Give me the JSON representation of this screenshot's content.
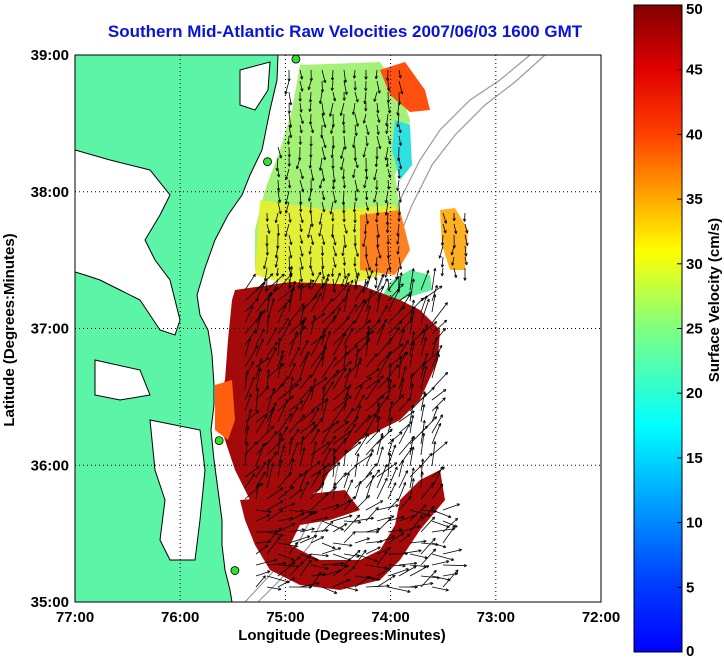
{
  "title": "Southern Mid-Atlantic Raw Velocities 2007/06/03 1600 GMT",
  "x_axis": {
    "label": "Longitude (Degrees:Minutes)",
    "ticks": [
      "77:00",
      "76:00",
      "75:00",
      "74:00",
      "73:00",
      "72:00"
    ],
    "range": [
      -77,
      -72
    ]
  },
  "y_axis": {
    "label": "Latitude (Degrees:Minutes)",
    "ticks": [
      "35:00",
      "36:00",
      "37:00",
      "38:00",
      "39:00"
    ],
    "range": [
      35,
      39
    ]
  },
  "colorbar": {
    "label": "Surface Velocity (cm/s)",
    "ticks": [
      "0",
      "5",
      "10",
      "15",
      "20",
      "25",
      "30",
      "35",
      "40",
      "45",
      "50"
    ],
    "range": [
      0,
      50
    ],
    "colormap": "jet"
  },
  "colors": {
    "land": "#5cf5a8",
    "title": "#0a14d8",
    "station_marker": "#30e030"
  },
  "stations": [
    {
      "lon": -74.9,
      "lat": 38.97
    },
    {
      "lon": -75.17,
      "lat": 38.22
    },
    {
      "lon": -75.63,
      "lat": 36.18
    },
    {
      "lon": -75.48,
      "lat": 35.23
    }
  ],
  "grid": "dotted"
}
